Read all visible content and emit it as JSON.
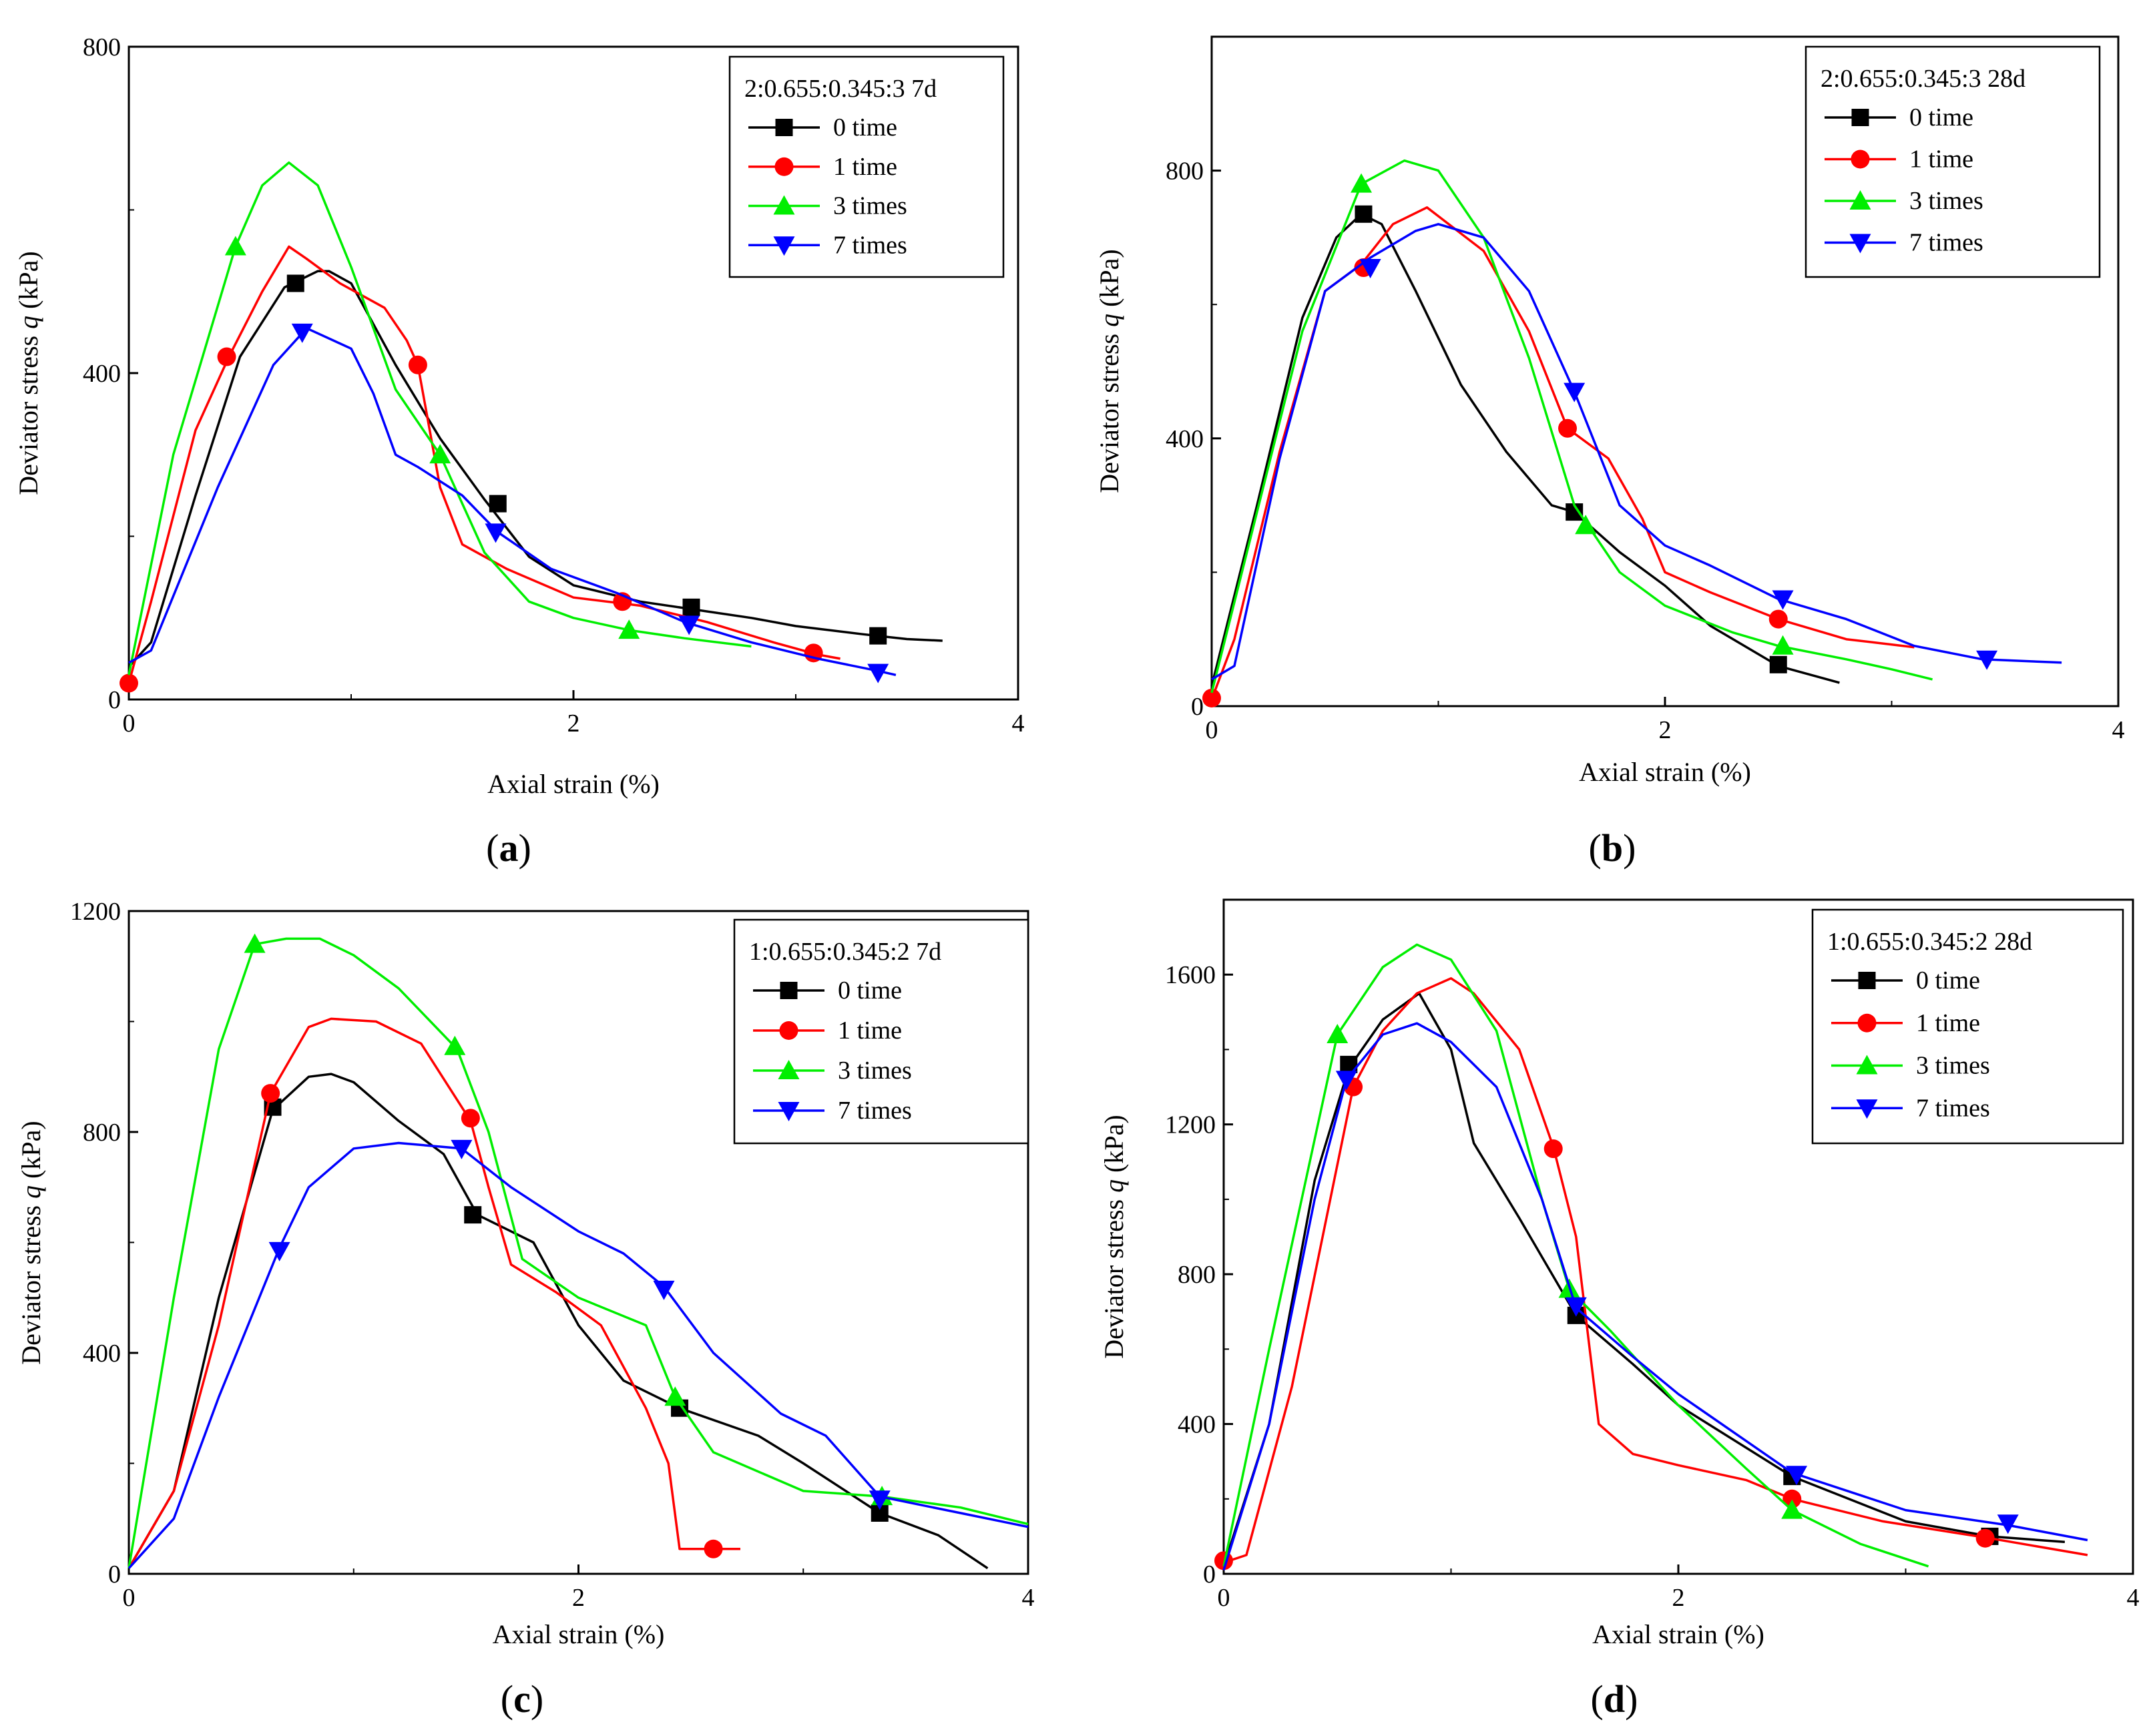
{
  "chart_data": [
    {
      "type": "line",
      "panel_label": "(a)",
      "legend_title": "2:0.655:0.345:3 7d",
      "legend_position": "top-right",
      "xlabel": "Axial strain (%)",
      "ylabel_prefix": "Deviator stress ",
      "ylabel_var": "q",
      "ylabel_suffix": " (kPa)",
      "xlim": [
        0,
        4
      ],
      "ylim": [
        0,
        800
      ],
      "xticks": [
        0,
        2,
        4
      ],
      "yticks": [
        0,
        400,
        800
      ],
      "series": [
        {
          "name": "0 time",
          "color": "#000000",
          "marker": "square",
          "x": [
            0,
            0.1,
            0.3,
            0.5,
            0.7,
            0.85,
            0.9,
            1.0,
            1.2,
            1.4,
            1.6,
            1.8,
            2.0,
            2.3,
            2.5,
            2.8,
            3.0,
            3.3,
            3.5,
            3.66
          ],
          "y": [
            40,
            70,
            250,
            420,
            505,
            525,
            525,
            510,
            410,
            320,
            245,
            175,
            140,
            120,
            112,
            100,
            90,
            80,
            74,
            72
          ],
          "mx": [
            0.75,
            1.66,
            2.53,
            3.37
          ],
          "my": [
            510,
            240,
            113,
            78
          ]
        },
        {
          "name": "1 time",
          "color": "#ff0000",
          "marker": "circle",
          "x": [
            0,
            0.1,
            0.3,
            0.45,
            0.6,
            0.72,
            0.8,
            0.95,
            1.15,
            1.25,
            1.3,
            1.4,
            1.5,
            1.7,
            2.0,
            2.3,
            2.6,
            2.9,
            3.1,
            3.2
          ],
          "y": [
            20,
            120,
            330,
            420,
            500,
            555,
            540,
            510,
            480,
            440,
            410,
            260,
            190,
            160,
            125,
            115,
            95,
            70,
            55,
            50
          ],
          "mx": [
            0,
            0.44,
            1.3,
            2.22,
            3.08
          ],
          "my": [
            20,
            420,
            410,
            120,
            57
          ]
        },
        {
          "name": "3 times",
          "color": "#00ee00",
          "marker": "triangle-up",
          "x": [
            0,
            0.2,
            0.48,
            0.6,
            0.72,
            0.85,
            1.0,
            1.2,
            1.4,
            1.6,
            1.8,
            2.0,
            2.25,
            2.5,
            2.8
          ],
          "y": [
            30,
            300,
            555,
            630,
            658,
            630,
            530,
            380,
            300,
            180,
            120,
            100,
            85,
            75,
            65
          ],
          "mx": [
            0.48,
            1.4,
            2.25
          ],
          "my": [
            555,
            300,
            85
          ]
        },
        {
          "name": "7 times",
          "color": "#0000ff",
          "marker": "triangle-down",
          "x": [
            0,
            0.1,
            0.4,
            0.65,
            0.8,
            1.0,
            1.1,
            1.2,
            1.3,
            1.5,
            1.66,
            1.9,
            2.2,
            2.5,
            2.8,
            3.1,
            3.37,
            3.45
          ],
          "y": [
            45,
            60,
            260,
            410,
            455,
            430,
            375,
            300,
            285,
            250,
            205,
            160,
            130,
            95,
            70,
            50,
            35,
            30
          ],
          "mx": [
            0.78,
            1.65,
            2.52,
            3.37
          ],
          "my": [
            450,
            205,
            92,
            33
          ]
        }
      ]
    },
    {
      "type": "line",
      "panel_label": "(b)",
      "legend_title": "2:0.655:0.345:3 28d",
      "legend_position": "top-right",
      "xlabel": "Axial strain (%)",
      "ylabel_prefix": "Deviator stress ",
      "ylabel_var": "q",
      "ylabel_suffix": " (kPa)",
      "xlim": [
        0,
        4
      ],
      "ylim": [
        0,
        1000
      ],
      "xticks": [
        0,
        2,
        4
      ],
      "yticks": [
        0,
        400,
        800
      ],
      "series": [
        {
          "name": "0 time",
          "color": "#000000",
          "marker": "square",
          "x": [
            0,
            0.2,
            0.4,
            0.55,
            0.66,
            0.75,
            0.9,
            1.1,
            1.3,
            1.5,
            1.6,
            1.8,
            2.0,
            2.2,
            2.5,
            2.77
          ],
          "y": [
            30,
            300,
            580,
            700,
            735,
            720,
            620,
            480,
            380,
            300,
            290,
            230,
            180,
            120,
            60,
            35
          ],
          "mx": [
            0.67,
            1.6,
            2.5
          ],
          "my": [
            735,
            290,
            62
          ]
        },
        {
          "name": "1 time",
          "color": "#ff0000",
          "marker": "circle",
          "x": [
            0,
            0.1,
            0.3,
            0.5,
            0.66,
            0.8,
            0.95,
            1.2,
            1.4,
            1.57,
            1.75,
            1.9,
            2.0,
            2.2,
            2.5,
            2.8,
            3.1
          ],
          "y": [
            10,
            100,
            380,
            620,
            660,
            720,
            745,
            680,
            560,
            415,
            370,
            280,
            200,
            170,
            130,
            100,
            88
          ],
          "mx": [
            0,
            0.67,
            1.57,
            2.5
          ],
          "my": [
            12,
            655,
            415,
            130
          ]
        },
        {
          "name": "3 times",
          "color": "#00ee00",
          "marker": "triangle-up",
          "x": [
            0,
            0.2,
            0.4,
            0.66,
            0.85,
            1.0,
            1.2,
            1.4,
            1.6,
            1.8,
            2.0,
            2.3,
            2.5,
            2.8,
            3.0,
            3.18
          ],
          "y": [
            20,
            290,
            560,
            780,
            815,
            800,
            700,
            520,
            300,
            200,
            150,
            110,
            90,
            70,
            55,
            40
          ],
          "mx": [
            0.66,
            1.65,
            2.52
          ],
          "my": [
            780,
            270,
            90
          ]
        },
        {
          "name": "7 times",
          "color": "#0000ff",
          "marker": "triangle-down",
          "x": [
            0,
            0.1,
            0.3,
            0.5,
            0.7,
            0.9,
            1.0,
            1.2,
            1.4,
            1.6,
            1.8,
            2.0,
            2.2,
            2.5,
            2.8,
            3.1,
            3.4,
            3.75
          ],
          "y": [
            40,
            60,
            370,
            620,
            670,
            710,
            720,
            700,
            620,
            470,
            300,
            240,
            210,
            160,
            130,
            90,
            70,
            65
          ],
          "mx": [
            0.7,
            1.6,
            2.52,
            3.42
          ],
          "my": [
            655,
            470,
            160,
            70
          ]
        }
      ]
    },
    {
      "type": "line",
      "panel_label": "(c)",
      "legend_title": "1:0.655:0.345:2 7d",
      "legend_position": "top-right",
      "xlabel": "Axial strain (%)",
      "ylabel_prefix": "Deviator stress ",
      "ylabel_var": "q",
      "ylabel_suffix": " (kPa)",
      "xlim": [
        0,
        4
      ],
      "ylim": [
        0,
        1200
      ],
      "xticks": [
        0,
        2,
        4
      ],
      "yticks": [
        0,
        400,
        800,
        1200
      ],
      "series": [
        {
          "name": "0 time",
          "color": "#000000",
          "marker": "square",
          "x": [
            0,
            0.2,
            0.4,
            0.64,
            0.8,
            0.9,
            1.0,
            1.2,
            1.4,
            1.55,
            1.8,
            2.0,
            2.2,
            2.45,
            2.8,
            3.0,
            3.34,
            3.6,
            3.82
          ],
          "y": [
            10,
            150,
            500,
            840,
            900,
            905,
            890,
            820,
            760,
            650,
            600,
            450,
            350,
            300,
            250,
            200,
            110,
            70,
            10
          ],
          "mx": [
            0.64,
            1.53,
            2.45,
            3.34
          ],
          "my": [
            845,
            650,
            300,
            110
          ]
        },
        {
          "name": "1 time",
          "color": "#ff0000",
          "marker": "circle",
          "x": [
            0,
            0.2,
            0.4,
            0.63,
            0.8,
            0.9,
            1.1,
            1.3,
            1.52,
            1.6,
            1.7,
            1.9,
            2.1,
            2.3,
            2.4,
            2.45,
            2.6,
            2.72
          ],
          "y": [
            10,
            150,
            450,
            870,
            990,
            1005,
            1000,
            960,
            820,
            700,
            560,
            510,
            450,
            300,
            200,
            45,
            45,
            45
          ],
          "mx": [
            0.63,
            1.52,
            2.6
          ],
          "my": [
            870,
            825,
            45
          ]
        },
        {
          "name": "3 times",
          "color": "#00ee00",
          "marker": "triangle-up",
          "x": [
            0,
            0.2,
            0.4,
            0.56,
            0.7,
            0.85,
            1.0,
            1.2,
            1.46,
            1.6,
            1.75,
            2.0,
            2.3,
            2.43,
            2.6,
            3.0,
            3.35,
            3.7,
            4.0
          ],
          "y": [
            10,
            500,
            950,
            1140,
            1150,
            1150,
            1120,
            1060,
            950,
            800,
            570,
            500,
            450,
            320,
            220,
            150,
            140,
            120,
            90
          ],
          "mx": [
            0.56,
            1.45,
            2.43,
            3.35
          ],
          "my": [
            1140,
            955,
            320,
            140
          ]
        },
        {
          "name": "7 times",
          "color": "#0000ff",
          "marker": "triangle-down",
          "x": [
            0,
            0.2,
            0.4,
            0.67,
            0.8,
            1.0,
            1.2,
            1.48,
            1.7,
            2.0,
            2.2,
            2.38,
            2.6,
            2.9,
            3.1,
            3.34,
            3.7,
            4.0
          ],
          "y": [
            10,
            100,
            320,
            590,
            700,
            770,
            780,
            770,
            700,
            620,
            580,
            520,
            400,
            290,
            250,
            140,
            110,
            85
          ],
          "mx": [
            0.67,
            1.48,
            2.38,
            3.34
          ],
          "my": [
            585,
            770,
            515,
            135
          ]
        }
      ]
    },
    {
      "type": "line",
      "panel_label": "(d)",
      "legend_title": "1:0.655:0.345:2  28d",
      "legend_position": "top-right",
      "xlabel": "Axial strain (%)",
      "ylabel_prefix": "Deviator stress ",
      "ylabel_var": "q",
      "ylabel_suffix": " (kPa)",
      "xlim": [
        0,
        4
      ],
      "ylim": [
        0,
        1800
      ],
      "xticks": [
        0,
        2,
        4
      ],
      "yticks": [
        0,
        400,
        800,
        1200,
        1600
      ],
      "series": [
        {
          "name": "0 time",
          "color": "#000000",
          "marker": "square",
          "x": [
            0,
            0.2,
            0.4,
            0.55,
            0.7,
            0.86,
            1.0,
            1.1,
            1.3,
            1.55,
            1.8,
            2.0,
            2.5,
            3.0,
            3.37,
            3.7
          ],
          "y": [
            20,
            400,
            1050,
            1350,
            1480,
            1550,
            1400,
            1150,
            950,
            690,
            560,
            450,
            260,
            140,
            100,
            85
          ],
          "mx": [
            0.55,
            1.55,
            2.5,
            3.37
          ],
          "my": [
            1360,
            690,
            260,
            100
          ]
        },
        {
          "name": "1 time",
          "color": "#ff0000",
          "marker": "circle",
          "x": [
            0,
            0.1,
            0.3,
            0.57,
            0.7,
            0.85,
            1.0,
            1.1,
            1.3,
            1.45,
            1.55,
            1.65,
            1.8,
            2.0,
            2.3,
            2.5,
            2.9,
            3.37,
            3.8
          ],
          "y": [
            30,
            50,
            500,
            1300,
            1450,
            1550,
            1590,
            1550,
            1400,
            1140,
            900,
            400,
            320,
            290,
            250,
            200,
            140,
            95,
            50
          ],
          "mx": [
            0,
            0.57,
            1.45,
            2.5,
            3.35
          ],
          "my": [
            35,
            1300,
            1135,
            200,
            95
          ]
        },
        {
          "name": "3 times",
          "color": "#00ee00",
          "marker": "triangle-up",
          "x": [
            0,
            0.2,
            0.5,
            0.7,
            0.85,
            1.0,
            1.2,
            1.4,
            1.52,
            1.7,
            2.0,
            2.3,
            2.5,
            2.8,
            3.1
          ],
          "y": [
            20,
            600,
            1440,
            1620,
            1680,
            1640,
            1450,
            1000,
            760,
            650,
            450,
            280,
            170,
            80,
            20
          ],
          "mx": [
            0.5,
            1.52,
            2.5
          ],
          "my": [
            1440,
            760,
            170
          ]
        },
        {
          "name": "7 times",
          "color": "#0000ff",
          "marker": "triangle-down",
          "x": [
            0,
            0.2,
            0.4,
            0.54,
            0.7,
            0.85,
            1.0,
            1.2,
            1.4,
            1.55,
            1.8,
            2.0,
            2.5,
            3.0,
            3.45,
            3.8
          ],
          "y": [
            10,
            400,
            1000,
            1320,
            1440,
            1470,
            1420,
            1300,
            1000,
            710,
            580,
            480,
            270,
            170,
            130,
            90
          ],
          "mx": [
            0.54,
            1.55,
            2.52,
            3.45
          ],
          "my": [
            1320,
            715,
            265,
            135
          ]
        }
      ]
    }
  ]
}
